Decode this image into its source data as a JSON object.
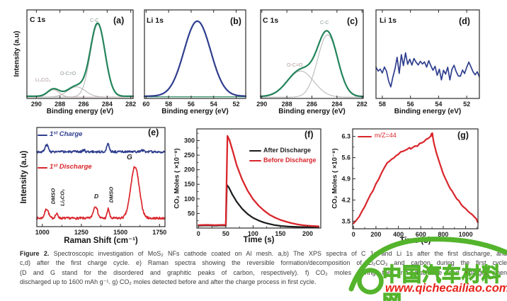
{
  "panels": {
    "a": {
      "title": "C 1s",
      "tag": "(a)",
      "xlabel": "Binding energy (eV)",
      "ylabel": "Intensity (a.u)",
      "peak_li2co3": "Li₂CO₃",
      "peak_oco": "O-C=O",
      "peak_cc": "C-C"
    },
    "b": {
      "title": "Li 1s",
      "tag": "(b)",
      "xlabel": "Binding energy (eV)"
    },
    "c": {
      "title": "C 1s",
      "tag": "(c)",
      "xlabel": "Binding energy (eV)",
      "peak_oco": "O-C=O",
      "peak_cc": "C-C"
    },
    "d": {
      "title": "Li 1s",
      "tag": "(d)",
      "xlabel": "Binding energy (eV)"
    },
    "e": {
      "tag": "(e)",
      "xlabel": "Raman Shift (cm⁻¹)",
      "ylabel": "Intensity (a.u)",
      "legend_charge": "1ˢᵗ Charge",
      "legend_discharge": "1ˢᵗ Discharge",
      "peak_dmso1": "DMSO",
      "peak_li2co3": "Li₂CO₃",
      "peak_d": "D",
      "peak_dmso2": "DMSO",
      "peak_g": "G"
    },
    "f": {
      "tag": "(f)",
      "xlabel": "Time (s)",
      "ylabel": "CO₂ Moles ( ×10⁻⁹)",
      "legend_after": "After Discharge",
      "legend_before": "Before Discharge"
    },
    "g": {
      "tag": "(g)",
      "xlabel": "Time (s)",
      "ylabel": "CO₂ Moles ( ×10⁻⁸)",
      "legend": "m/Z=44"
    }
  },
  "figure": {
    "caption_label": "Figure 2.",
    "caption_lines": [
      "Spectroscopic investigation of MoS₂ NFs cathode coated on Al mesh. a,b) The XPS spectra of C 1s and Li 1s after the first discharge, and",
      "c,d) after the first charge cycle. e) Raman spectra showing the reversible formation/decomposition of Li₂CO₃ and carbon during the first cycle",
      "(D and G stand for the disordered and graphitic peaks of carbon, respectively). f) CO₂ moles during the first discharge and charge when",
      "discharged up to 1600 mAh g⁻¹. g) CO₂ moles detected before and after the charge process in first cycle."
    ]
  },
  "watermark": {
    "site_name": "中国汽车材料网",
    "site_url": "www.qichecailiao.com",
    "green": "#54b42c",
    "red": "#e8251c"
  },
  "colors": {
    "green_curve": "#23855b",
    "blue_curve": "#2f3e8e",
    "red_curve": "#d9252b",
    "black_curve": "#1c1c1c",
    "fit_gray": "#b9b9b9"
  },
  "chart_data": {
    "a": {
      "type": "line",
      "title": "C 1s",
      "xlabel": "Binding energy (eV)",
      "ylabel": "Intensity (a.u)",
      "xrange": [
        290.8,
        281.8
      ],
      "yrange": [
        0,
        1.22
      ],
      "xticks": [
        290,
        288,
        286,
        284,
        282
      ],
      "peaks": [
        {
          "label": "Li₂CO₃",
          "center_eV": 288.55
        },
        {
          "label": "O-C=O",
          "center_eV": 286.6
        },
        {
          "label": "C-C",
          "center_eV": 284.8
        }
      ],
      "curves": [
        {
          "name": "fit-cc",
          "kind": "gauss",
          "color": "#b9b9b9",
          "width": 1.1,
          "base": 0.02,
          "comps": [
            [
              284.8,
              1.0,
              0.62
            ]
          ]
        },
        {
          "name": "fit-oco",
          "kind": "gauss",
          "color": "#b9b9b9",
          "width": 1.1,
          "base": 0.02,
          "comps": [
            [
              286.6,
              0.14,
              0.75
            ]
          ]
        },
        {
          "name": "fit-li2co3",
          "kind": "gauss",
          "color": "#c4b0b0",
          "width": 1.1,
          "base": 0.02,
          "comps": [
            [
              288.55,
              0.1,
              0.48
            ]
          ]
        },
        {
          "name": "envelope",
          "kind": "gauss",
          "color": "#23855b",
          "width": 2.2,
          "base": 0.03,
          "comps": [
            [
              284.8,
              1.0,
              0.62
            ],
            [
              286.6,
              0.14,
              0.75
            ],
            [
              288.55,
              0.1,
              0.48
            ]
          ]
        }
      ]
    },
    "b": {
      "type": "line",
      "title": "Li 1s",
      "xlabel": "Binding energy (eV)",
      "xrange": [
        60.15,
        51.15
      ],
      "yrange": [
        0,
        1.18
      ],
      "xticks": [
        60,
        58,
        56,
        54,
        52
      ],
      "peaks": [
        {
          "label": "Li 1s",
          "center_eV": 55.45
        }
      ],
      "curves": [
        {
          "name": "baseline",
          "kind": "gauss",
          "color": "#23855b",
          "width": 1.2,
          "base": 0.022,
          "comps": []
        },
        {
          "name": "li1s-peak",
          "kind": "gauss",
          "color": "#2f3e8e",
          "width": 2.2,
          "base": 0.03,
          "comps": [
            [
              55.45,
              1.0,
              1.18
            ]
          ]
        }
      ]
    },
    "c": {
      "type": "line",
      "title": "C 1s",
      "xlabel": "Binding energy (eV)",
      "xrange": [
        290.1,
        281.9
      ],
      "yrange": [
        0,
        1.42
      ],
      "xticks": [
        290,
        288,
        286,
        284,
        282
      ],
      "peaks": [
        {
          "label": "O-C=O",
          "center_eV": 286.9
        },
        {
          "label": "C-C",
          "center_eV": 284.75
        }
      ],
      "curves": [
        {
          "name": "fit-cc",
          "kind": "gauss",
          "color": "#b9b9b9",
          "width": 1.1,
          "base": 0.02,
          "comps": [
            [
              284.75,
              1.0,
              0.8
            ]
          ]
        },
        {
          "name": "fit-oco",
          "kind": "gauss",
          "color": "#b9b9b9",
          "width": 1.1,
          "base": 0.02,
          "comps": [
            [
              286.9,
              0.42,
              1.05
            ]
          ]
        },
        {
          "name": "envelope",
          "kind": "gauss",
          "color": "#23855b",
          "width": 2.2,
          "base": 0.03,
          "comps": [
            [
              284.75,
              1.0,
              0.8
            ],
            [
              286.9,
              0.42,
              1.05
            ]
          ]
        }
      ]
    },
    "d": {
      "type": "line",
      "title": "Li 1s",
      "xlabel": "Binding energy (eV)",
      "xrange": [
        58.45,
        51.1
      ],
      "yrange": [
        0,
        1
      ],
      "xticks": [
        58,
        56,
        54,
        52
      ],
      "curves": [
        {
          "name": "noise-trace",
          "kind": "ys",
          "color": "#2f3e8e",
          "width": 1.7,
          "jitter": 0.012,
          "seed": 9,
          "ys": [
            0.36,
            0.3,
            0.34,
            0.28,
            0.35,
            0.3,
            0.2,
            0.12,
            0.25,
            0.33,
            0.46,
            0.28,
            0.5,
            0.36,
            0.52,
            0.38,
            0.44,
            0.38,
            0.45,
            0.4,
            0.37,
            0.42,
            0.38,
            0.42,
            0.35,
            0.43,
            0.38,
            0.31,
            0.37,
            0.26,
            0.33,
            0.22,
            0.31,
            0.27,
            0.36,
            0.22,
            0.33,
            0.38,
            0.3,
            0.26,
            0.25,
            0.31,
            0.28,
            0.36,
            0.41,
            0.36,
            0.3,
            0.26,
            0.3,
            0.24
          ]
        }
      ]
    },
    "e": {
      "type": "line",
      "xlabel": "Raman Shift (cm⁻¹)",
      "ylabel": "Intensity (a.u)",
      "xrange": [
        965,
        1785
      ],
      "yrange": [
        0,
        1.06
      ],
      "xticks": [
        1000,
        1250,
        1500,
        1750
      ],
      "peaks": [
        {
          "label": "DMSO",
          "x": 1028
        },
        {
          "label": "Li₂CO₃",
          "x": 1092
        },
        {
          "label": "D",
          "x": 1340
        },
        {
          "label": "DMSO",
          "x": 1422
        },
        {
          "label": "G",
          "x": 1593
        }
      ],
      "curves": [
        {
          "name": "1st Discharge",
          "kind": "gauss",
          "color": "#d9252b",
          "width": 1.7,
          "base": 0.09,
          "jitter": 0.012,
          "seed": 7,
          "comps": [
            [
              1028,
              0.1,
              12
            ],
            [
              1092,
              0.045,
              9
            ],
            [
              1340,
              0.13,
              13
            ],
            [
              1422,
              0.1,
              7
            ],
            [
              1593,
              0.55,
              27
            ]
          ]
        },
        {
          "name": "1st Charge",
          "kind": "gauss",
          "color": "#2f3e8e",
          "width": 1.7,
          "base": 0.8,
          "jitter": 0.012,
          "seed": 3,
          "comps": [
            [
              1028,
              0.075,
              10
            ],
            [
              1265,
              0.02,
              8
            ],
            [
              1420,
              0.08,
              9
            ],
            [
              1640,
              0.015,
              10
            ]
          ]
        }
      ]
    },
    "f": {
      "type": "line",
      "xlabel": "Time (s)",
      "ylabel": "CO₂ Moles ( ×10⁻⁹)",
      "xrange": [
        -3,
        224
      ],
      "yrange": [
        0,
        340
      ],
      "xticks": [
        0,
        50,
        100,
        150,
        200
      ],
      "yticks": [
        50,
        100,
        150,
        200,
        250,
        300
      ],
      "curves": [
        {
          "name": "After Discharge",
          "kind": "pts",
          "color": "#1c1c1c",
          "width": 2.2,
          "pts": [
            [
              0,
              8
            ],
            [
              15,
              9
            ],
            [
              30,
              8
            ],
            [
              45,
              9
            ],
            [
              50,
              8
            ],
            [
              52,
              148
            ],
            [
              56,
              138
            ],
            [
              62,
              115
            ],
            [
              70,
              90
            ],
            [
              80,
              66
            ],
            [
              90,
              48
            ],
            [
              100,
              35
            ],
            [
              110,
              26
            ],
            [
              120,
              19
            ],
            [
              130,
              14
            ],
            [
              140,
              10
            ],
            [
              152,
              7
            ],
            [
              165,
              5
            ],
            [
              180,
              4
            ],
            [
              200,
              3
            ],
            [
              220,
              3
            ]
          ]
        },
        {
          "name": "Before Discharge",
          "kind": "pts",
          "color": "#d9252b",
          "width": 2.3,
          "pts": [
            [
              0,
              10
            ],
            [
              15,
              11
            ],
            [
              30,
              10
            ],
            [
              45,
              11
            ],
            [
              50,
              10
            ],
            [
              53,
              316
            ],
            [
              57,
              300
            ],
            [
              63,
              262
            ],
            [
              70,
              215
            ],
            [
              80,
              166
            ],
            [
              90,
              128
            ],
            [
              100,
              99
            ],
            [
              110,
              77
            ],
            [
              120,
              60
            ],
            [
              130,
              46
            ],
            [
              140,
              36
            ],
            [
              150,
              28
            ],
            [
              160,
              22
            ],
            [
              170,
              17
            ],
            [
              180,
              13
            ],
            [
              190,
              10
            ],
            [
              200,
              8
            ],
            [
              210,
              7
            ],
            [
              220,
              6
            ]
          ]
        }
      ]
    },
    "g": {
      "type": "line",
      "xlabel": "Time (s)",
      "ylabel": "CO₂ Moles ( ×10⁻⁸)",
      "legend": "m/Z=44",
      "xrange": [
        -8,
        1110
      ],
      "yrange": [
        3.25,
        6.55
      ],
      "xticks": [
        0,
        200,
        400,
        600,
        800,
        1000
      ],
      "yticks": [
        3.5,
        4.2,
        4.9,
        5.6,
        6.3
      ],
      "curves": [
        {
          "name": "m/Z=44",
          "kind": "pts",
          "color": "#d9252b",
          "width": 2.2,
          "jitter": 0.02,
          "seed": 5,
          "pts": [
            [
              0,
              3.42
            ],
            [
              25,
              3.52
            ],
            [
              50,
              3.66
            ],
            [
              75,
              3.82
            ],
            [
              100,
              4.0
            ],
            [
              125,
              4.18
            ],
            [
              150,
              4.36
            ],
            [
              175,
              4.52
            ],
            [
              200,
              4.72
            ],
            [
              225,
              4.9
            ],
            [
              250,
              5.08
            ],
            [
              275,
              5.26
            ],
            [
              300,
              5.42
            ],
            [
              320,
              5.5
            ],
            [
              340,
              5.55
            ],
            [
              360,
              5.6
            ],
            [
              380,
              5.65
            ],
            [
              400,
              5.72
            ],
            [
              420,
              5.78
            ],
            [
              440,
              5.8
            ],
            [
              460,
              5.85
            ],
            [
              480,
              5.9
            ],
            [
              500,
              5.92
            ],
            [
              510,
              5.9
            ],
            [
              530,
              5.95
            ],
            [
              550,
              6.0
            ],
            [
              570,
              5.98
            ],
            [
              590,
              6.05
            ],
            [
              610,
              6.1
            ],
            [
              630,
              6.15
            ],
            [
              650,
              6.2
            ],
            [
              665,
              6.24
            ],
            [
              680,
              6.28
            ],
            [
              690,
              6.3
            ],
            [
              695,
              6.4
            ],
            [
              700,
              6.32
            ],
            [
              703,
              6.42
            ],
            [
              708,
              6.25
            ],
            [
              715,
              6.1
            ],
            [
              725,
              5.95
            ],
            [
              740,
              5.75
            ],
            [
              760,
              5.5
            ],
            [
              780,
              5.28
            ],
            [
              800,
              5.08
            ],
            [
              820,
              4.9
            ],
            [
              840,
              4.74
            ],
            [
              860,
              4.6
            ],
            [
              880,
              4.48
            ],
            [
              900,
              4.36
            ],
            [
              920,
              4.26
            ],
            [
              940,
              4.16
            ],
            [
              960,
              4.06
            ],
            [
              980,
              3.98
            ],
            [
              1000,
              3.9
            ],
            [
              1020,
              3.84
            ],
            [
              1040,
              3.78
            ],
            [
              1060,
              3.7
            ],
            [
              1080,
              3.64
            ],
            [
              1095,
              3.56
            ],
            [
              1105,
              3.5
            ],
            [
              1110,
              3.47
            ]
          ]
        }
      ]
    }
  }
}
